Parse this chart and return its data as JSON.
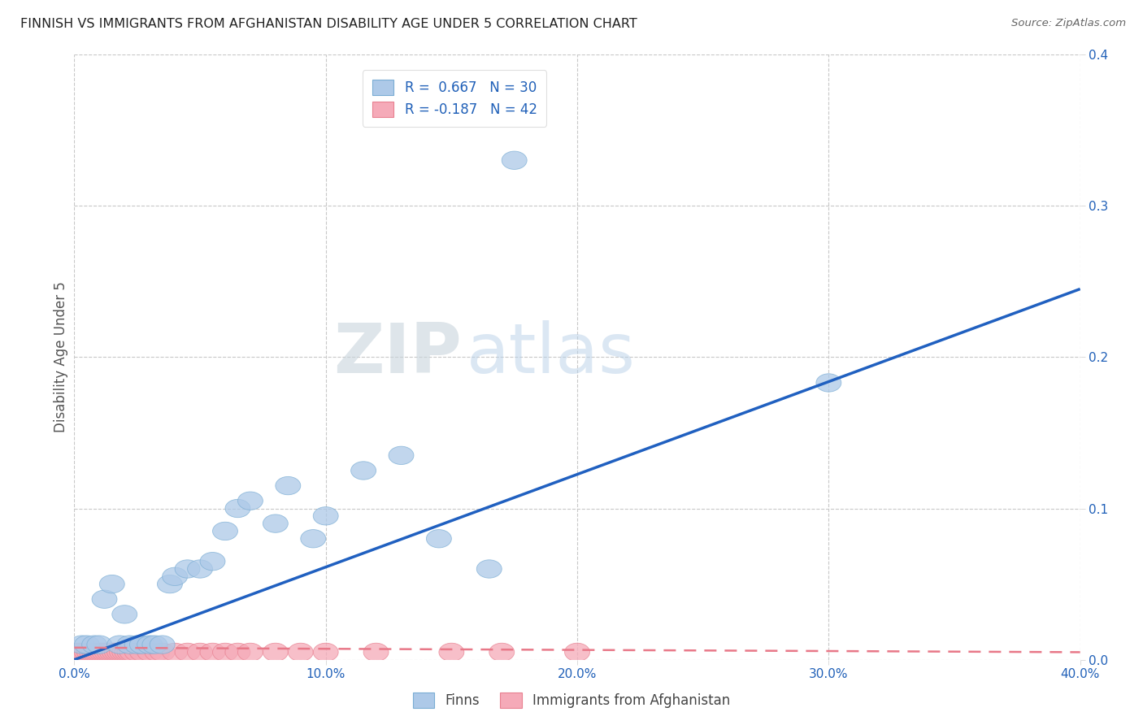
{
  "title": "FINNISH VS IMMIGRANTS FROM AFGHANISTAN DISABILITY AGE UNDER 5 CORRELATION CHART",
  "source": "Source: ZipAtlas.com",
  "ylabel": "Disability Age Under 5",
  "xlim": [
    0.0,
    0.4
  ],
  "ylim": [
    0.0,
    0.4
  ],
  "xtick_labels": [
    "0.0%",
    "10.0%",
    "20.0%",
    "30.0%",
    "40.0%"
  ],
  "xtick_vals": [
    0.0,
    0.1,
    0.2,
    0.3,
    0.4
  ],
  "ytick_labels": [
    "",
    "10.0%",
    "20.0%",
    "30.0%",
    "40.0%"
  ],
  "ytick_vals": [
    0.0,
    0.1,
    0.2,
    0.3,
    0.4
  ],
  "finns_r": 0.667,
  "finns_n": 30,
  "afghan_r": -0.187,
  "afghan_n": 42,
  "finns_color": "#adc9e8",
  "afghan_color": "#f5aab8",
  "finns_edge_color": "#7aadd4",
  "afghan_edge_color": "#e88090",
  "finns_line_color": "#2060c0",
  "afghan_line_color": "#e87888",
  "legend_label_finns": "Finns",
  "legend_label_afghan": "Immigrants from Afghanistan",
  "watermark_zip": "ZIP",
  "watermark_atlas": "atlas",
  "finns_x": [
    0.003,
    0.005,
    0.008,
    0.01,
    0.012,
    0.015,
    0.018,
    0.02,
    0.022,
    0.025,
    0.027,
    0.03,
    0.032,
    0.035,
    0.038,
    0.04,
    0.045,
    0.05,
    0.055,
    0.06,
    0.065,
    0.07,
    0.08,
    0.085,
    0.095,
    0.1,
    0.115,
    0.13,
    0.145,
    0.165
  ],
  "finns_y": [
    0.01,
    0.01,
    0.01,
    0.01,
    0.04,
    0.05,
    0.01,
    0.03,
    0.01,
    0.01,
    0.01,
    0.01,
    0.01,
    0.01,
    0.05,
    0.055,
    0.06,
    0.06,
    0.065,
    0.085,
    0.1,
    0.105,
    0.09,
    0.115,
    0.08,
    0.095,
    0.125,
    0.135,
    0.08,
    0.06
  ],
  "afghan_x": [
    0.001,
    0.002,
    0.003,
    0.004,
    0.005,
    0.006,
    0.007,
    0.008,
    0.009,
    0.01,
    0.011,
    0.012,
    0.013,
    0.014,
    0.015,
    0.016,
    0.017,
    0.018,
    0.019,
    0.02,
    0.021,
    0.022,
    0.023,
    0.025,
    0.027,
    0.03,
    0.033,
    0.035,
    0.04,
    0.045,
    0.05,
    0.055,
    0.06,
    0.065,
    0.07,
    0.08,
    0.09,
    0.1,
    0.12,
    0.15,
    0.17,
    0.2
  ],
  "afghan_y": [
    0.005,
    0.005,
    0.005,
    0.005,
    0.005,
    0.005,
    0.005,
    0.005,
    0.005,
    0.005,
    0.005,
    0.005,
    0.005,
    0.005,
    0.005,
    0.005,
    0.005,
    0.005,
    0.005,
    0.005,
    0.005,
    0.005,
    0.005,
    0.005,
    0.005,
    0.005,
    0.005,
    0.005,
    0.005,
    0.005,
    0.005,
    0.005,
    0.005,
    0.005,
    0.005,
    0.005,
    0.005,
    0.005,
    0.005,
    0.005,
    0.005,
    0.005
  ],
  "finns_line_x": [
    0.0,
    0.4
  ],
  "finns_line_y": [
    0.0,
    0.245
  ],
  "afghan_line_x": [
    0.0,
    0.4
  ],
  "afghan_line_y": [
    0.008,
    0.005
  ],
  "background_color": "#ffffff",
  "grid_color": "#c8c8c8"
}
